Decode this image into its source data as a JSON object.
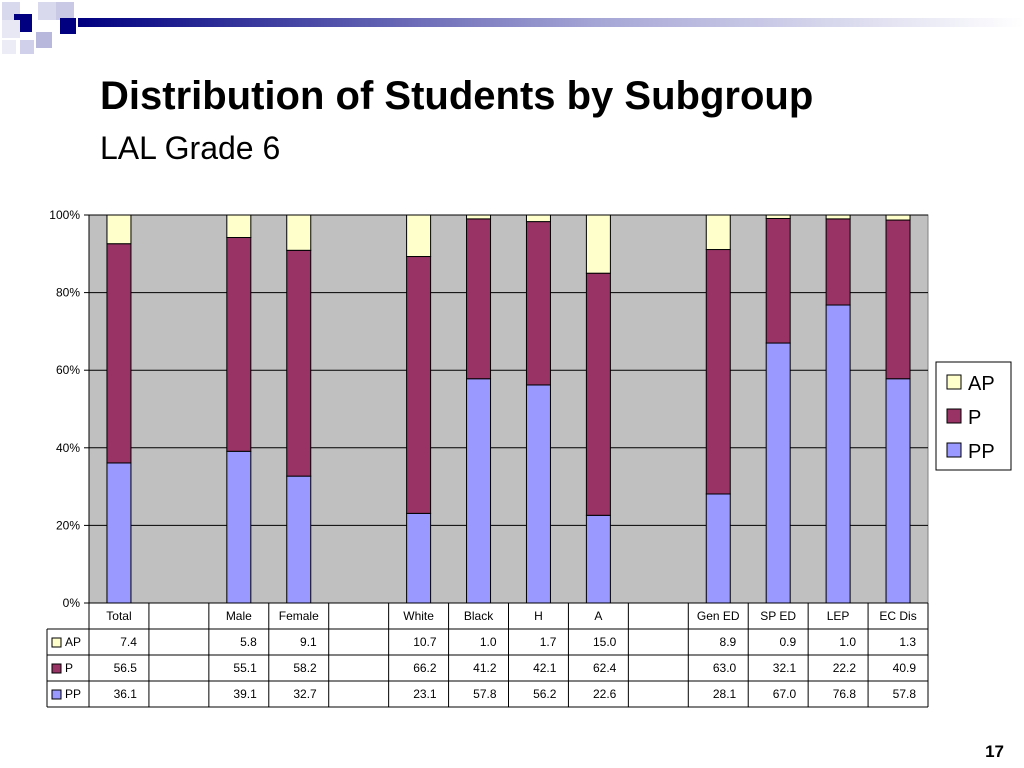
{
  "slide": {
    "title": "Distribution of Students by Subgroup",
    "subtitle": "LAL Grade 6",
    "page_number": "17"
  },
  "colors": {
    "AP": "#ffffcc",
    "P": "#993366",
    "PP": "#9999ff",
    "plot_bg": "#c0c0c0",
    "header_band": "#000080"
  },
  "chart_data": {
    "type": "bar",
    "stacked": true,
    "percent": true,
    "categories": [
      "Total",
      "",
      "Male",
      "Female",
      "",
      "White",
      "Black",
      "H",
      "A",
      "",
      "Gen ED",
      "SP ED",
      "LEP",
      "EC Dis"
    ],
    "series": [
      {
        "name": "AP",
        "values": [
          7.4,
          null,
          5.8,
          9.1,
          null,
          10.7,
          1.0,
          1.7,
          15.0,
          null,
          8.9,
          0.9,
          1.0,
          1.3
        ]
      },
      {
        "name": "P",
        "values": [
          56.5,
          null,
          55.1,
          58.2,
          null,
          66.2,
          41.2,
          42.1,
          62.4,
          null,
          63.0,
          32.1,
          22.2,
          40.9
        ]
      },
      {
        "name": "PP",
        "values": [
          36.1,
          null,
          39.1,
          32.7,
          null,
          23.1,
          57.8,
          56.2,
          22.6,
          null,
          28.1,
          67.0,
          76.8,
          57.8
        ]
      }
    ],
    "table_rows": [
      {
        "name": "AP",
        "values": [
          "7.4",
          "",
          "5.8",
          "9.1",
          "",
          "10.7",
          "1.0",
          "1.7",
          "15.0",
          "",
          "8.9",
          "0.9",
          "1.0",
          "1.3"
        ]
      },
      {
        "name": "P",
        "values": [
          "56.5",
          "",
          "55.1",
          "58.2",
          "",
          "66.2",
          "41.2",
          "42.1",
          "62.4",
          "",
          "63.0",
          "32.1",
          "22.2",
          "40.9"
        ]
      },
      {
        "name": "PP",
        "values": [
          "36.1",
          "",
          "39.1",
          "32.7",
          "",
          "23.1",
          "57.8",
          "56.2",
          "22.6",
          "",
          "28.1",
          "67.0",
          "76.8",
          "57.8"
        ]
      }
    ],
    "yticks": [
      "0%",
      "20%",
      "40%",
      "60%",
      "80%",
      "100%"
    ],
    "ylim": [
      0,
      100
    ],
    "grid": true,
    "legend": {
      "position": "right",
      "entries": [
        "AP",
        "P",
        "PP"
      ]
    }
  }
}
